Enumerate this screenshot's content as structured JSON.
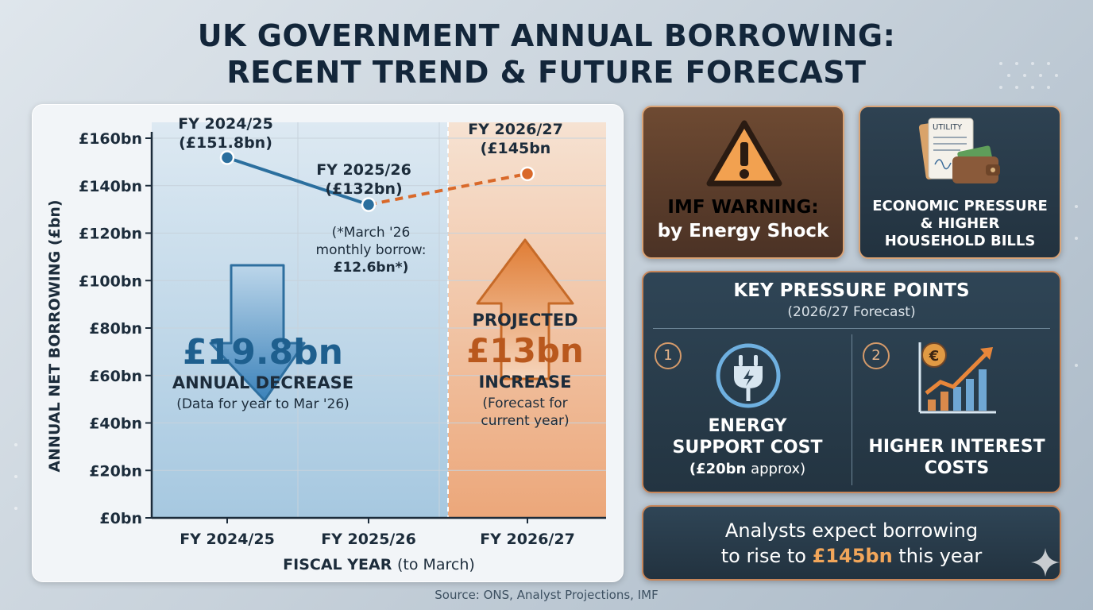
{
  "title": {
    "line1": "UK GOVERNMENT ANNUAL BORROWING:",
    "line2": "RECENT TREND & FUTURE FORECAST"
  },
  "chart_data": {
    "type": "line",
    "ylabel": "ANNUAL NET BORROWING (£bn)",
    "xlabel_bold": "FISCAL YEAR",
    "xlabel_rest": "(to March)",
    "ylim": [
      0,
      160
    ],
    "yticks": [
      0,
      20,
      40,
      60,
      80,
      100,
      120,
      140,
      160
    ],
    "ytick_labels": [
      "£0bn",
      "£20bn",
      "£40bn",
      "£60bn",
      "£80bn",
      "£100bn",
      "£120bn",
      "£140bn",
      "£160bn"
    ],
    "categories": [
      "FY 2024/25",
      "FY 2025/26",
      "FY 2026/27"
    ],
    "series": [
      {
        "values": [
          151.8,
          132,
          145
        ],
        "point_labels": [
          {
            "line1": "FY 2024/25",
            "line2": "(£151.8bn)"
          },
          {
            "line1": "FY 2025/26",
            "line2": "(£132bn)"
          },
          {
            "line1": "FY 2026/27",
            "line2": "(£145bn"
          }
        ],
        "actual_points": 2,
        "forecast_points": 1
      }
    ],
    "grid": true,
    "colors": {
      "actual": "#2b6f9e",
      "forecast": "#d9692a",
      "decrease_arrow": "#3f86bd",
      "increase_arrow": "#e0813a",
      "decrease_text": "#1e5f8e",
      "increase_text": "#b9581d"
    },
    "annotations": {
      "march_note": [
        "(*March '26",
        "monthly borrow:",
        "£12.6bn*)"
      ],
      "decrease": {
        "amount": "£19.8bn",
        "label": "ANNUAL DECREASE",
        "note": "(Data for year to Mar '26)"
      },
      "increase": {
        "projected": "PROJECTED",
        "amount": "£13bn",
        "label": "INCREASE",
        "note_line1": "(Forecast for",
        "note_line2": "current year)"
      }
    }
  },
  "cards": {
    "warning": {
      "line1": "IMF WARNING:",
      "line2": "by Energy Shock",
      "line1_color": "#f3a95e",
      "icon": "warning-triangle-icon"
    },
    "pressure": {
      "line1": "ECONOMIC PRESSURE",
      "line2": "& HIGHER",
      "line3": "HOUSEHOLD BILLS",
      "icon": "utility-bill-wallet-icon",
      "bill_label": "UTILITY"
    },
    "key_points": {
      "title": "KEY PRESSURE POINTS",
      "subtitle": "(2026/27 Forecast)",
      "items": [
        {
          "number": "1",
          "line1": "ENERGY",
          "line2": "SUPPORT COST",
          "note_bold": "(£20bn",
          "note_rest": " approx)",
          "icon": "energy-plug-icon"
        },
        {
          "number": "2",
          "line1": "HIGHER INTEREST",
          "line2": "COSTS",
          "icon": "interest-chart-icon",
          "currency_symbol": "€"
        }
      ]
    },
    "analyst": {
      "line1": "Analysts expect borrowing",
      "line2_before": "to rise to ",
      "line2_highlight": "£145bn",
      "line2_after": " this year"
    }
  },
  "source": "Source: ONS, Analyst Projections, IMF"
}
